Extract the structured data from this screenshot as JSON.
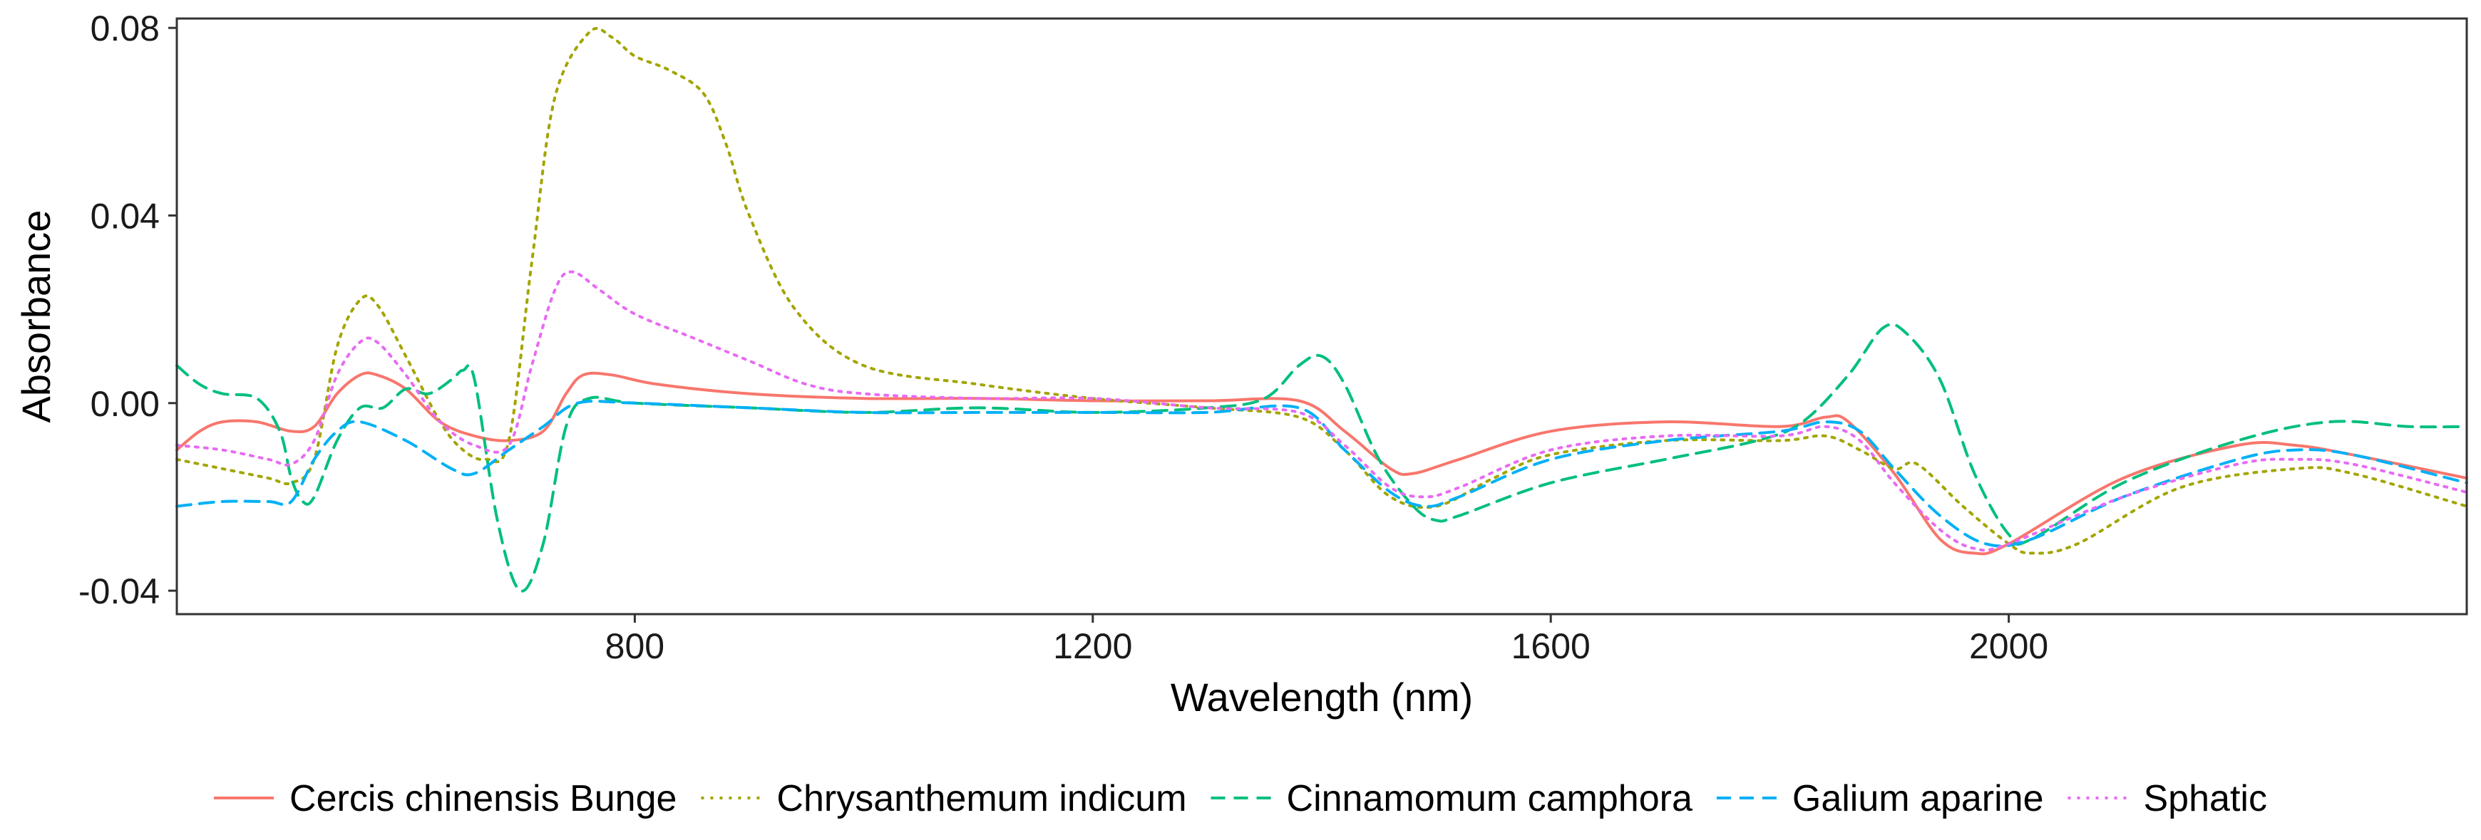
{
  "chart_data": {
    "type": "line",
    "title": "",
    "xlabel": "Wavelength (nm)",
    "ylabel": "Absorbance",
    "xlim": [
      400,
      2400
    ],
    "ylim": [
      -0.045,
      0.082
    ],
    "xticks": [
      800,
      1200,
      1600,
      2000
    ],
    "xtick_labels": [
      "800",
      "1200",
      "1600",
      "2000"
    ],
    "yticks": [
      -0.04,
      0.0,
      0.04,
      0.08
    ],
    "ytick_labels": [
      "-0.04",
      "0.00",
      "0.04",
      "0.08"
    ],
    "grid": false,
    "legend_position": "bottom",
    "series": [
      {
        "name": "Cercis chinensis Bunge",
        "color": "#F8766D",
        "dash": "solid",
        "points": [
          [
            400,
            -0.01
          ],
          [
            420,
            -0.006
          ],
          [
            440,
            -0.004
          ],
          [
            470,
            -0.004
          ],
          [
            500,
            -0.006
          ],
          [
            520,
            -0.005
          ],
          [
            540,
            0.002
          ],
          [
            560,
            0.006
          ],
          [
            575,
            0.006
          ],
          [
            600,
            0.003
          ],
          [
            630,
            -0.004
          ],
          [
            660,
            -0.007
          ],
          [
            690,
            -0.008
          ],
          [
            720,
            -0.006
          ],
          [
            740,
            0.002
          ],
          [
            755,
            0.006
          ],
          [
            780,
            0.006
          ],
          [
            820,
            0.004
          ],
          [
            900,
            0.002
          ],
          [
            1000,
            0.001
          ],
          [
            1100,
            0.001
          ],
          [
            1200,
            0.0005
          ],
          [
            1300,
            0.0005
          ],
          [
            1380,
            0.0005
          ],
          [
            1420,
            -0.006
          ],
          [
            1460,
            -0.014
          ],
          [
            1480,
            -0.015
          ],
          [
            1520,
            -0.012
          ],
          [
            1600,
            -0.006
          ],
          [
            1700,
            -0.004
          ],
          [
            1800,
            -0.005
          ],
          [
            1840,
            -0.003
          ],
          [
            1860,
            -0.004
          ],
          [
            1900,
            -0.015
          ],
          [
            1940,
            -0.029
          ],
          [
            1970,
            -0.032
          ],
          [
            2000,
            -0.03
          ],
          [
            2100,
            -0.016
          ],
          [
            2200,
            -0.009
          ],
          [
            2250,
            -0.009
          ],
          [
            2300,
            -0.011
          ],
          [
            2400,
            -0.016
          ]
        ]
      },
      {
        "name": "Chrysanthemum indicum",
        "color": "#A3A500",
        "dash": "dotted",
        "points": [
          [
            400,
            -0.012
          ],
          [
            440,
            -0.014
          ],
          [
            480,
            -0.016
          ],
          [
            500,
            -0.017
          ],
          [
            520,
            -0.012
          ],
          [
            540,
            0.012
          ],
          [
            560,
            0.022
          ],
          [
            575,
            0.021
          ],
          [
            600,
            0.01
          ],
          [
            630,
            -0.004
          ],
          [
            650,
            -0.01
          ],
          [
            670,
            -0.012
          ],
          [
            690,
            -0.008
          ],
          [
            710,
            0.03
          ],
          [
            730,
            0.065
          ],
          [
            760,
            0.079
          ],
          [
            780,
            0.078
          ],
          [
            800,
            0.074
          ],
          [
            830,
            0.071
          ],
          [
            860,
            0.066
          ],
          [
            880,
            0.055
          ],
          [
            900,
            0.04
          ],
          [
            940,
            0.02
          ],
          [
            1000,
            0.008
          ],
          [
            1100,
            0.004
          ],
          [
            1200,
            0.001
          ],
          [
            1300,
            -0.001
          ],
          [
            1380,
            -0.003
          ],
          [
            1420,
            -0.01
          ],
          [
            1460,
            -0.02
          ],
          [
            1500,
            -0.022
          ],
          [
            1550,
            -0.016
          ],
          [
            1600,
            -0.011
          ],
          [
            1700,
            -0.008
          ],
          [
            1800,
            -0.008
          ],
          [
            1840,
            -0.007
          ],
          [
            1870,
            -0.01
          ],
          [
            1900,
            -0.014
          ],
          [
            1920,
            -0.013
          ],
          [
            1960,
            -0.022
          ],
          [
            2000,
            -0.03
          ],
          [
            2020,
            -0.032
          ],
          [
            2060,
            -0.03
          ],
          [
            2150,
            -0.018
          ],
          [
            2250,
            -0.014
          ],
          [
            2300,
            -0.015
          ],
          [
            2400,
            -0.022
          ]
        ]
      },
      {
        "name": "Cinnamomum camphora",
        "color": "#00BF7D",
        "dash": "dashed",
        "points": [
          [
            400,
            0.008
          ],
          [
            420,
            0.004
          ],
          [
            440,
            0.002
          ],
          [
            470,
            0.001
          ],
          [
            490,
            -0.006
          ],
          [
            500,
            -0.016
          ],
          [
            510,
            -0.021
          ],
          [
            520,
            -0.02
          ],
          [
            540,
            -0.008
          ],
          [
            560,
            -0.001
          ],
          [
            580,
            -0.001
          ],
          [
            600,
            0.003
          ],
          [
            620,
            0.002
          ],
          [
            640,
            0.005
          ],
          [
            650,
            0.007
          ],
          [
            660,
            0.005
          ],
          [
            680,
            -0.025
          ],
          [
            700,
            -0.04
          ],
          [
            720,
            -0.03
          ],
          [
            740,
            -0.005
          ],
          [
            760,
            0.001
          ],
          [
            800,
            0.0
          ],
          [
            900,
            -0.001
          ],
          [
            1000,
            -0.002
          ],
          [
            1100,
            -0.001
          ],
          [
            1200,
            -0.002
          ],
          [
            1300,
            -0.001
          ],
          [
            1350,
            0.001
          ],
          [
            1380,
            0.008
          ],
          [
            1400,
            0.01
          ],
          [
            1420,
            0.004
          ],
          [
            1450,
            -0.012
          ],
          [
            1480,
            -0.022
          ],
          [
            1500,
            -0.025
          ],
          [
            1520,
            -0.024
          ],
          [
            1600,
            -0.017
          ],
          [
            1700,
            -0.012
          ],
          [
            1780,
            -0.008
          ],
          [
            1820,
            -0.004
          ],
          [
            1860,
            0.006
          ],
          [
            1890,
            0.016
          ],
          [
            1910,
            0.015
          ],
          [
            1940,
            0.005
          ],
          [
            1970,
            -0.015
          ],
          [
            2000,
            -0.028
          ],
          [
            2020,
            -0.029
          ],
          [
            2100,
            -0.017
          ],
          [
            2200,
            -0.008
          ],
          [
            2280,
            -0.004
          ],
          [
            2350,
            -0.005
          ],
          [
            2400,
            -0.005
          ]
        ]
      },
      {
        "name": "Galium aparine",
        "color": "#00B0F6",
        "dash": "dashed",
        "points": [
          [
            400,
            -0.022
          ],
          [
            440,
            -0.021
          ],
          [
            480,
            -0.021
          ],
          [
            500,
            -0.021
          ],
          [
            520,
            -0.012
          ],
          [
            540,
            -0.006
          ],
          [
            560,
            -0.004
          ],
          [
            600,
            -0.008
          ],
          [
            640,
            -0.014
          ],
          [
            660,
            -0.015
          ],
          [
            690,
            -0.01
          ],
          [
            720,
            -0.005
          ],
          [
            750,
            0.0
          ],
          [
            800,
            0.0
          ],
          [
            900,
            -0.001
          ],
          [
            1000,
            -0.002
          ],
          [
            1100,
            -0.002
          ],
          [
            1200,
            -0.002
          ],
          [
            1300,
            -0.002
          ],
          [
            1380,
            -0.001
          ],
          [
            1420,
            -0.01
          ],
          [
            1460,
            -0.019
          ],
          [
            1490,
            -0.022
          ],
          [
            1520,
            -0.02
          ],
          [
            1600,
            -0.012
          ],
          [
            1700,
            -0.008
          ],
          [
            1800,
            -0.006
          ],
          [
            1840,
            -0.004
          ],
          [
            1870,
            -0.006
          ],
          [
            1900,
            -0.014
          ],
          [
            1940,
            -0.024
          ],
          [
            1980,
            -0.03
          ],
          [
            2020,
            -0.029
          ],
          [
            2100,
            -0.02
          ],
          [
            2200,
            -0.012
          ],
          [
            2250,
            -0.01
          ],
          [
            2300,
            -0.011
          ],
          [
            2400,
            -0.017
          ]
        ]
      },
      {
        "name": "Sphatic",
        "color": "#E76BF3",
        "dash": "dotted",
        "points": [
          [
            400,
            -0.009
          ],
          [
            440,
            -0.01
          ],
          [
            480,
            -0.012
          ],
          [
            500,
            -0.013
          ],
          [
            520,
            -0.008
          ],
          [
            540,
            0.006
          ],
          [
            560,
            0.013
          ],
          [
            575,
            0.013
          ],
          [
            600,
            0.006
          ],
          [
            630,
            -0.004
          ],
          [
            660,
            -0.009
          ],
          [
            690,
            -0.009
          ],
          [
            710,
            0.008
          ],
          [
            730,
            0.024
          ],
          [
            745,
            0.028
          ],
          [
            770,
            0.024
          ],
          [
            800,
            0.019
          ],
          [
            850,
            0.014
          ],
          [
            900,
            0.009
          ],
          [
            950,
            0.004
          ],
          [
            1000,
            0.002
          ],
          [
            1100,
            0.001
          ],
          [
            1200,
            0.001
          ],
          [
            1300,
            -0.001
          ],
          [
            1380,
            -0.002
          ],
          [
            1420,
            -0.009
          ],
          [
            1460,
            -0.018
          ],
          [
            1490,
            -0.02
          ],
          [
            1520,
            -0.018
          ],
          [
            1600,
            -0.01
          ],
          [
            1700,
            -0.007
          ],
          [
            1800,
            -0.007
          ],
          [
            1840,
            -0.005
          ],
          [
            1870,
            -0.008
          ],
          [
            1900,
            -0.017
          ],
          [
            1940,
            -0.027
          ],
          [
            1970,
            -0.031
          ],
          [
            2000,
            -0.03
          ],
          [
            2100,
            -0.02
          ],
          [
            2200,
            -0.013
          ],
          [
            2250,
            -0.012
          ],
          [
            2300,
            -0.013
          ],
          [
            2400,
            -0.019
          ]
        ]
      }
    ]
  }
}
